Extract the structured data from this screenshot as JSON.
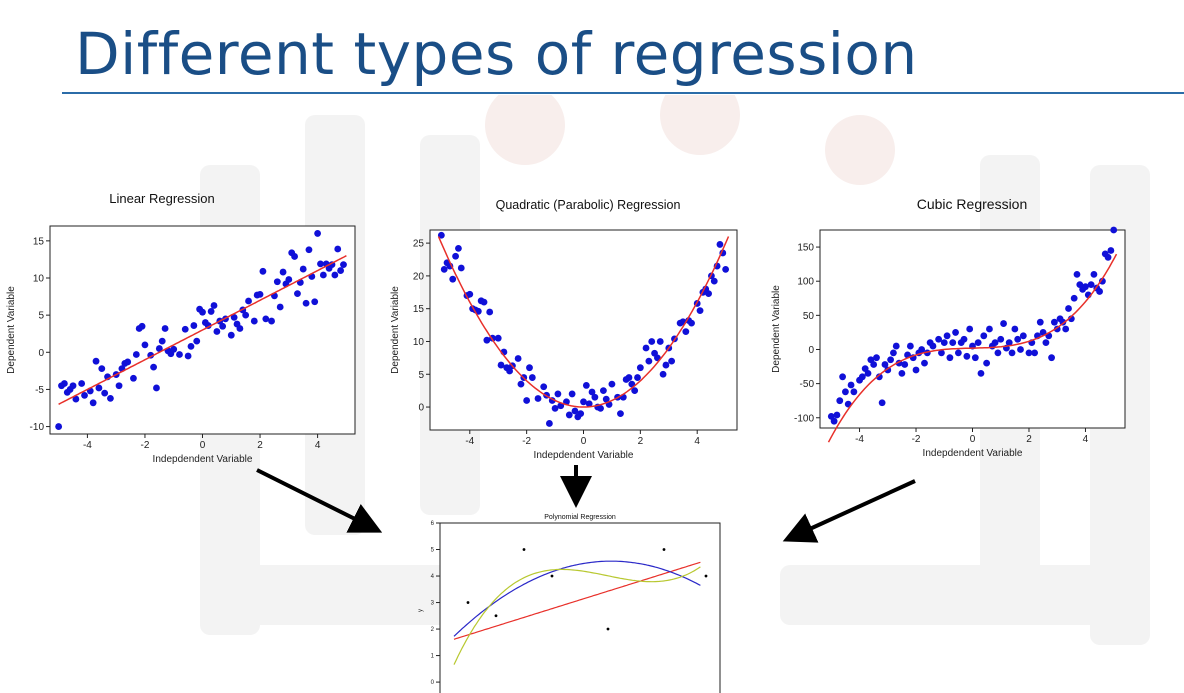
{
  "slide": {
    "title": "Different types of regression"
  },
  "colors": {
    "title": "#1a4e86",
    "points": "#1010d8",
    "fit": "#e8302a",
    "watermark": "#f1f1f1",
    "arrow": "#000000"
  },
  "chart_data": [
    {
      "type": "scatter",
      "title": "Linear Regression",
      "xlabel": "Indepdendent Variable",
      "ylabel": "Dependent Variable",
      "xlim": [
        -5.3,
        5.3
      ],
      "ylim": [
        -11,
        17
      ],
      "xticks": [
        -4,
        -2,
        0,
        2,
        4
      ],
      "yticks": [
        -10,
        -5,
        0,
        5,
        10,
        15
      ],
      "grid": false,
      "fit": {
        "kind": "linear",
        "coeffs": [
          2.0,
          3.0
        ]
      },
      "points": [
        [
          -5,
          -10
        ],
        [
          -4.9,
          -4.5
        ],
        [
          -4.8,
          -4.2
        ],
        [
          -4.7,
          -5.4
        ],
        [
          -4.6,
          -5.0
        ],
        [
          -4.5,
          -4.5
        ],
        [
          -4.4,
          -6.3
        ],
        [
          -4.2,
          -4.2
        ],
        [
          -4.1,
          -5.8
        ],
        [
          -3.9,
          -5.2
        ],
        [
          -3.8,
          -6.8
        ],
        [
          -3.7,
          -1.2
        ],
        [
          -3.6,
          -4.8
        ],
        [
          -3.5,
          -2.2
        ],
        [
          -3.4,
          -5.5
        ],
        [
          -3.3,
          -3.3
        ],
        [
          -3.2,
          -6.2
        ],
        [
          -3.0,
          -3.0
        ],
        [
          -2.9,
          -4.5
        ],
        [
          -2.8,
          -2.2
        ],
        [
          -2.7,
          -1.5
        ],
        [
          -2.6,
          -1.3
        ],
        [
          -2.4,
          -3.5
        ],
        [
          -2.3,
          -0.3
        ],
        [
          -2.2,
          3.2
        ],
        [
          -2.1,
          3.5
        ],
        [
          -2.0,
          1.0
        ],
        [
          -1.8,
          -0.4
        ],
        [
          -1.7,
          -2.0
        ],
        [
          -1.6,
          -4.8
        ],
        [
          -1.5,
          0.5
        ],
        [
          -1.4,
          1.5
        ],
        [
          -1.3,
          3.2
        ],
        [
          -1.2,
          0.2
        ],
        [
          -1.1,
          -0.2
        ],
        [
          -1.0,
          0.4
        ],
        [
          -0.8,
          -0.3
        ],
        [
          -0.6,
          3.1
        ],
        [
          -0.5,
          -0.5
        ],
        [
          -0.4,
          0.8
        ],
        [
          -0.3,
          3.6
        ],
        [
          -0.2,
          1.5
        ],
        [
          -0.1,
          5.8
        ],
        [
          0,
          5.4
        ],
        [
          0.1,
          4.0
        ],
        [
          0.2,
          3.6
        ],
        [
          0.3,
          5.5
        ],
        [
          0.4,
          6.3
        ],
        [
          0.5,
          2.8
        ],
        [
          0.6,
          4.2
        ],
        [
          0.7,
          3.5
        ],
        [
          0.8,
          4.5
        ],
        [
          1.0,
          2.3
        ],
        [
          1.1,
          4.7
        ],
        [
          1.2,
          3.8
        ],
        [
          1.3,
          3.2
        ],
        [
          1.4,
          5.7
        ],
        [
          1.5,
          5.0
        ],
        [
          1.6,
          6.9
        ],
        [
          1.8,
          4.2
        ],
        [
          1.9,
          7.7
        ],
        [
          2.0,
          7.8
        ],
        [
          2.1,
          10.9
        ],
        [
          2.2,
          4.5
        ],
        [
          2.4,
          4.2
        ],
        [
          2.5,
          7.6
        ],
        [
          2.6,
          9.5
        ],
        [
          2.7,
          6.1
        ],
        [
          2.8,
          10.8
        ],
        [
          2.9,
          9.2
        ],
        [
          3.0,
          9.8
        ],
        [
          3.1,
          13.4
        ],
        [
          3.2,
          12.9
        ],
        [
          3.3,
          7.9
        ],
        [
          3.4,
          9.4
        ],
        [
          3.5,
          11.2
        ],
        [
          3.6,
          6.6
        ],
        [
          3.7,
          13.8
        ],
        [
          3.8,
          10.2
        ],
        [
          3.9,
          6.8
        ],
        [
          4.0,
          16.0
        ],
        [
          4.1,
          11.9
        ],
        [
          4.2,
          10.4
        ],
        [
          4.3,
          11.9
        ],
        [
          4.4,
          11.3
        ],
        [
          4.5,
          11.8
        ],
        [
          4.6,
          10.4
        ],
        [
          4.7,
          13.9
        ],
        [
          4.8,
          11.0
        ],
        [
          4.9,
          11.8
        ]
      ]
    },
    {
      "type": "scatter",
      "title": "Quadratic (Parabolic) Regression",
      "xlabel": "Indepdendent Variable",
      "ylabel": "Dependent Variable",
      "xlim": [
        -5.4,
        5.4
      ],
      "ylim": [
        -3.5,
        27
      ],
      "xticks": [
        -4,
        -2,
        0,
        2,
        4
      ],
      "yticks": [
        0,
        5,
        10,
        15,
        20,
        25
      ],
      "grid": false,
      "fit": {
        "kind": "quadratic",
        "coeffs": [
          1.0,
          0.0,
          0.0
        ]
      },
      "points": [
        [
          -5,
          26.2
        ],
        [
          -4.9,
          21
        ],
        [
          -4.8,
          22
        ],
        [
          -4.7,
          21.5
        ],
        [
          -4.6,
          19.5
        ],
        [
          -4.5,
          23
        ],
        [
          -4.4,
          24.2
        ],
        [
          -4.3,
          21.2
        ],
        [
          -4.1,
          17
        ],
        [
          -4.0,
          17.2
        ],
        [
          -3.9,
          15
        ],
        [
          -3.8,
          14.8
        ],
        [
          -3.7,
          14.6
        ],
        [
          -3.6,
          16.2
        ],
        [
          -3.5,
          16
        ],
        [
          -3.4,
          10.2
        ],
        [
          -3.3,
          14.5
        ],
        [
          -3.2,
          10.5
        ],
        [
          -3.0,
          10.5
        ],
        [
          -2.9,
          6.4
        ],
        [
          -2.8,
          8.4
        ],
        [
          -2.7,
          6
        ],
        [
          -2.6,
          5.5
        ],
        [
          -2.5,
          6.3
        ],
        [
          -2.3,
          7.4
        ],
        [
          -2.2,
          3.5
        ],
        [
          -2.1,
          4.5
        ],
        [
          -2.0,
          1
        ],
        [
          -1.9,
          6
        ],
        [
          -1.8,
          4.5
        ],
        [
          -1.6,
          1.3
        ],
        [
          -1.4,
          3.1
        ],
        [
          -1.3,
          1.8
        ],
        [
          -1.2,
          -2.5
        ],
        [
          -1.1,
          1
        ],
        [
          -1.0,
          -0.2
        ],
        [
          -0.9,
          2
        ],
        [
          -0.8,
          0.2
        ],
        [
          -0.6,
          0.8
        ],
        [
          -0.5,
          -1.2
        ],
        [
          -0.4,
          2
        ],
        [
          -0.3,
          -0.6
        ],
        [
          -0.2,
          -1.5
        ],
        [
          -0.1,
          -1
        ],
        [
          0,
          0.8
        ],
        [
          0.1,
          3.3
        ],
        [
          0.2,
          0.5
        ],
        [
          0.3,
          2.3
        ],
        [
          0.4,
          1.5
        ],
        [
          0.5,
          0
        ],
        [
          0.6,
          -0.2
        ],
        [
          0.7,
          2.5
        ],
        [
          0.8,
          1.2
        ],
        [
          0.9,
          0.4
        ],
        [
          1.0,
          3.5
        ],
        [
          1.2,
          1.5
        ],
        [
          1.3,
          -1
        ],
        [
          1.4,
          1.5
        ],
        [
          1.5,
          4.2
        ],
        [
          1.6,
          4.5
        ],
        [
          1.7,
          3.5
        ],
        [
          1.8,
          2.5
        ],
        [
          1.9,
          4.5
        ],
        [
          2.0,
          6
        ],
        [
          2.2,
          9
        ],
        [
          2.3,
          7
        ],
        [
          2.4,
          10
        ],
        [
          2.5,
          8.2
        ],
        [
          2.6,
          7.5
        ],
        [
          2.7,
          10
        ],
        [
          2.8,
          5
        ],
        [
          2.9,
          6.4
        ],
        [
          3.0,
          9
        ],
        [
          3.1,
          7
        ],
        [
          3.2,
          10.4
        ],
        [
          3.4,
          12.8
        ],
        [
          3.5,
          13
        ],
        [
          3.6,
          11.5
        ],
        [
          3.7,
          13.2
        ],
        [
          3.8,
          12.8
        ],
        [
          4.0,
          15.8
        ],
        [
          4.1,
          14.7
        ],
        [
          4.2,
          17.5
        ],
        [
          4.3,
          18
        ],
        [
          4.4,
          17.3
        ],
        [
          4.5,
          20
        ],
        [
          4.6,
          19.2
        ],
        [
          4.7,
          21.5
        ],
        [
          4.8,
          24.8
        ],
        [
          4.9,
          23.5
        ],
        [
          5.0,
          21
        ]
      ]
    },
    {
      "type": "scatter",
      "title": "Cubic Regression",
      "xlabel": "Indepdendent Variable",
      "ylabel": "Dependent Variable",
      "xlim": [
        -5.4,
        5.4
      ],
      "ylim": [
        -115,
        175
      ],
      "xticks": [
        -4,
        -2,
        0,
        2,
        4
      ],
      "yticks": [
        -100,
        -50,
        0,
        50,
        100,
        150
      ],
      "grid": false,
      "fit": {
        "kind": "cubic",
        "coeffs": [
          1.0,
          0.0,
          1.0,
          2.0
        ]
      },
      "points": [
        [
          -5,
          -98
        ],
        [
          -4.9,
          -105
        ],
        [
          -4.8,
          -96
        ],
        [
          -4.7,
          -75
        ],
        [
          -4.6,
          -40
        ],
        [
          -4.5,
          -62
        ],
        [
          -4.4,
          -80
        ],
        [
          -4.3,
          -52
        ],
        [
          -4.2,
          -62
        ],
        [
          -4.0,
          -45
        ],
        [
          -3.9,
          -40
        ],
        [
          -3.8,
          -28
        ],
        [
          -3.7,
          -35
        ],
        [
          -3.6,
          -15
        ],
        [
          -3.5,
          -22
        ],
        [
          -3.4,
          -12
        ],
        [
          -3.3,
          -40
        ],
        [
          -3.2,
          -78
        ],
        [
          -3.1,
          -22
        ],
        [
          -3.0,
          -30
        ],
        [
          -2.9,
          -15
        ],
        [
          -2.8,
          -5
        ],
        [
          -2.7,
          5
        ],
        [
          -2.6,
          -20
        ],
        [
          -2.5,
          -35
        ],
        [
          -2.4,
          -22
        ],
        [
          -2.3,
          -8
        ],
        [
          -2.2,
          5
        ],
        [
          -2.1,
          -12
        ],
        [
          -2.0,
          -30
        ],
        [
          -1.9,
          -5
        ],
        [
          -1.8,
          0
        ],
        [
          -1.7,
          -20
        ],
        [
          -1.6,
          -5
        ],
        [
          -1.5,
          10
        ],
        [
          -1.4,
          5
        ],
        [
          -1.2,
          15
        ],
        [
          -1.1,
          -5
        ],
        [
          -1.0,
          10
        ],
        [
          -0.9,
          20
        ],
        [
          -0.8,
          -12
        ],
        [
          -0.7,
          10
        ],
        [
          -0.6,
          25
        ],
        [
          -0.5,
          -5
        ],
        [
          -0.4,
          10
        ],
        [
          -0.3,
          15
        ],
        [
          -0.2,
          -10
        ],
        [
          -0.1,
          30
        ],
        [
          0,
          5
        ],
        [
          0.1,
          -12
        ],
        [
          0.2,
          10
        ],
        [
          0.3,
          -35
        ],
        [
          0.4,
          20
        ],
        [
          0.5,
          -20
        ],
        [
          0.6,
          30
        ],
        [
          0.7,
          5
        ],
        [
          0.8,
          10
        ],
        [
          0.9,
          -5
        ],
        [
          1.0,
          15
        ],
        [
          1.1,
          38
        ],
        [
          1.2,
          2
        ],
        [
          1.3,
          10
        ],
        [
          1.4,
          -5
        ],
        [
          1.5,
          30
        ],
        [
          1.6,
          15
        ],
        [
          1.7,
          0
        ],
        [
          1.8,
          20
        ],
        [
          2.0,
          -5
        ],
        [
          2.1,
          10
        ],
        [
          2.2,
          -5
        ],
        [
          2.3,
          20
        ],
        [
          2.4,
          40
        ],
        [
          2.5,
          25
        ],
        [
          2.6,
          10
        ],
        [
          2.7,
          20
        ],
        [
          2.8,
          -12
        ],
        [
          2.9,
          40
        ],
        [
          3.0,
          30
        ],
        [
          3.1,
          45
        ],
        [
          3.2,
          40
        ],
        [
          3.3,
          30
        ],
        [
          3.4,
          60
        ],
        [
          3.5,
          45
        ],
        [
          3.6,
          75
        ],
        [
          3.7,
          110
        ],
        [
          3.8,
          95
        ],
        [
          3.9,
          88
        ],
        [
          4.0,
          92
        ],
        [
          4.1,
          80
        ],
        [
          4.2,
          95
        ],
        [
          4.3,
          110
        ],
        [
          4.4,
          90
        ],
        [
          4.5,
          85
        ],
        [
          4.6,
          100
        ],
        [
          4.7,
          140
        ],
        [
          4.8,
          135
        ],
        [
          4.9,
          145
        ],
        [
          5.0,
          175
        ]
      ]
    },
    {
      "type": "scatter",
      "title": "Polynomial Regression",
      "xlabel": "",
      "ylabel": "y",
      "xlim": [
        0,
        10
      ],
      "ylim": [
        -0.6,
        6
      ],
      "yticks": [
        0,
        1,
        2,
        3,
        4,
        5,
        6
      ],
      "grid": false,
      "points": [
        [
          1,
          3
        ],
        [
          2,
          2.5
        ],
        [
          3,
          5
        ],
        [
          4,
          4
        ],
        [
          6,
          2
        ],
        [
          8,
          5
        ],
        [
          9.5,
          4
        ]
      ],
      "curves": [
        {
          "color": "#e8302a",
          "kind": "linear",
          "coeffs": [
            0.33,
            1.45
          ],
          "x_range": [
            0.5,
            9.3
          ]
        },
        {
          "color": "#2a28c8",
          "kind": "quadratic",
          "coeffs": [
            -0.09,
            1.1,
            1.2
          ],
          "x_range": [
            0.5,
            9.3
          ]
        },
        {
          "color": "#b8c830",
          "kind": "cubic",
          "coeffs": [
            0.028,
            -0.5,
            2.76,
            -0.6
          ],
          "x_range": [
            0.5,
            9.3
          ]
        }
      ]
    }
  ]
}
